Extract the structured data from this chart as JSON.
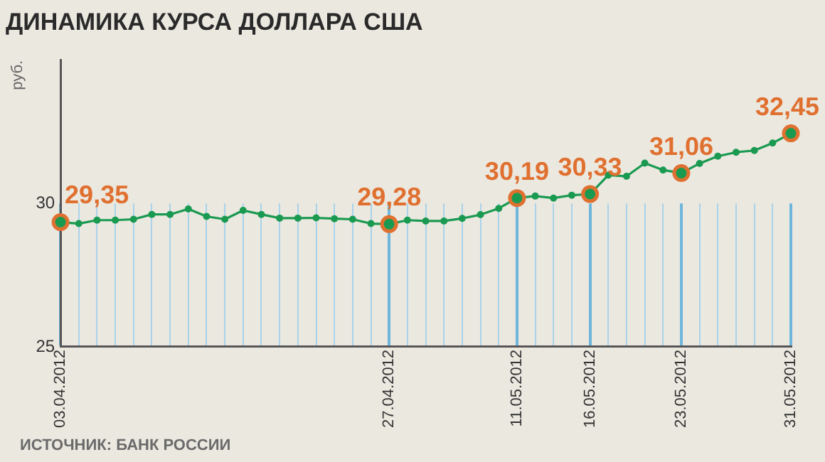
{
  "chart_data": {
    "type": "line",
    "title": "ДИНАМИКА КУРСА ДОЛЛАРА США",
    "ylabel": "руб.",
    "categories": [
      "03.04.2012",
      null,
      null,
      null,
      null,
      null,
      null,
      null,
      null,
      null,
      null,
      null,
      null,
      null,
      null,
      null,
      null,
      null,
      "27.04.2012",
      null,
      null,
      null,
      null,
      null,
      null,
      "11.05.2012",
      null,
      null,
      null,
      "16.05.2012",
      null,
      null,
      null,
      null,
      "23.05.2012",
      null,
      null,
      null,
      null,
      null,
      "31.05.2012"
    ],
    "series": [
      {
        "color": "#1a9a50",
        "values": [
          29.35,
          29.3,
          29.42,
          29.42,
          29.45,
          29.62,
          29.62,
          29.81,
          29.55,
          29.45,
          29.76,
          29.62,
          29.49,
          29.49,
          29.5,
          29.47,
          29.45,
          29.3,
          29.28,
          29.42,
          29.39,
          29.39,
          29.48,
          29.61,
          29.83,
          30.19,
          30.26,
          30.19,
          30.29,
          30.33,
          30.99,
          30.95,
          31.41,
          31.17,
          31.06,
          31.4,
          31.65,
          31.79,
          31.85,
          32.11,
          32.45
        ],
        "value_labels": [
          "29,35",
          null,
          null,
          null,
          null,
          null,
          null,
          null,
          null,
          null,
          null,
          null,
          null,
          null,
          null,
          null,
          null,
          null,
          "29,28",
          null,
          null,
          null,
          null,
          null,
          null,
          "30,19",
          null,
          null,
          null,
          "30,33",
          null,
          null,
          null,
          null,
          "31,06",
          null,
          null,
          null,
          null,
          null,
          "32,45"
        ]
      }
    ],
    "ylim": [
      25,
      35
    ],
    "yticks": [
      25,
      30
    ],
    "grid": "x",
    "marker": "circle",
    "line_style": "solid",
    "legend": false,
    "annotations": [
      "ИСТОЧНИК: БАНК РОССИИ"
    ]
  }
}
